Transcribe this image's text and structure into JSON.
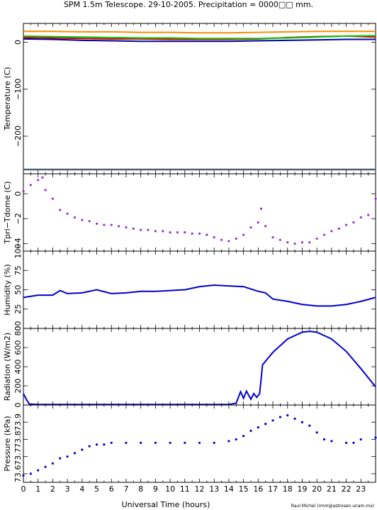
{
  "title": "SPM 1.5m Telescope. 29-10-2005. Precipitation = 0000□□ mm.",
  "xlabel": "Universal Time (hours)",
  "credit": "Raul Michel (rmm@astrosen.unam.mx)",
  "colors": {
    "temp_orange": "#ff8c00",
    "temp_red": "#dd0000",
    "temp_green": "#00cc00",
    "temp_blue": "#0000aa",
    "temp_gray": "#506070",
    "delta": "#9932cc",
    "humidity": "#0000cc",
    "radiation": "#0000cc",
    "pressure": "#0000cc"
  },
  "chart_data": [
    {
      "type": "line",
      "ylabel": "Temperature (C)",
      "xlim": [
        0,
        24
      ],
      "ylim": [
        -280,
        40
      ],
      "xticks": [
        "0",
        "1",
        "2",
        "3",
        "4",
        "5",
        "6",
        "7",
        "8",
        "9",
        "10",
        "11",
        "12",
        "13",
        "14",
        "15",
        "16",
        "17",
        "18",
        "19",
        "20",
        "21",
        "22",
        "23"
      ],
      "yticks": [
        "0",
        "−100",
        "−200"
      ],
      "series": [
        {
          "color": "orange",
          "x": [
            0,
            2,
            4,
            6,
            8,
            10,
            12,
            14,
            16,
            18,
            20,
            22,
            24
          ],
          "y": [
            23,
            23,
            22,
            22,
            21,
            21,
            20,
            20,
            21,
            22,
            23,
            23,
            23
          ]
        },
        {
          "color": "red",
          "x": [
            0,
            2,
            4,
            6,
            8,
            10,
            12,
            14,
            16,
            18,
            20,
            22,
            24
          ],
          "y": [
            10,
            9,
            8,
            7,
            7,
            6,
            6,
            6,
            7,
            10,
            12,
            13,
            11
          ]
        },
        {
          "color": "green",
          "x": [
            0,
            2,
            4,
            6,
            8,
            10,
            12,
            14,
            16,
            18,
            20,
            22,
            24
          ],
          "y": [
            13,
            12,
            11,
            10,
            9,
            9,
            8,
            8,
            8,
            9,
            11,
            13,
            14
          ]
        },
        {
          "color": "blue",
          "x": [
            0,
            2,
            4,
            6,
            8,
            10,
            12,
            14,
            16,
            18,
            20,
            22,
            24
          ],
          "y": [
            7,
            6,
            4,
            3,
            2,
            2,
            2,
            2,
            3,
            4,
            5,
            6,
            6
          ]
        },
        {
          "color": "gray",
          "x": [
            0,
            24
          ],
          "y": [
            -271,
            -271
          ]
        }
      ]
    },
    {
      "type": "scatter",
      "ylabel": "Tpri−Tdome (C)",
      "xlim": [
        0,
        24
      ],
      "ylim": [
        -4.6,
        1.6
      ],
      "yticks": [
        "0",
        "−2",
        "−4"
      ],
      "x": [
        0,
        0.5,
        1.0,
        1.3,
        1.5,
        2.0,
        2.5,
        3.0,
        3.5,
        4.0,
        4.5,
        5.0,
        5.5,
        6.0,
        6.5,
        7.0,
        7.5,
        8.0,
        8.5,
        9.0,
        9.5,
        10.0,
        10.5,
        11.0,
        11.5,
        12.0,
        12.5,
        13.0,
        13.5,
        14.0,
        14.5,
        15.0,
        15.5,
        16.0,
        16.2,
        16.5,
        17.0,
        17.5,
        18.0,
        18.5,
        19.0,
        19.5,
        20.0,
        20.5,
        21.0,
        21.5,
        22.0,
        22.5,
        23.0,
        23.5,
        24.0
      ],
      "y": [
        0.2,
        0.7,
        1.1,
        1.3,
        0.3,
        -0.4,
        -1.3,
        -1.6,
        -1.9,
        -2.1,
        -2.2,
        -2.4,
        -2.5,
        -2.5,
        -2.6,
        -2.7,
        -2.8,
        -2.9,
        -2.9,
        -3.0,
        -3.0,
        -3.1,
        -3.1,
        -3.1,
        -3.2,
        -3.2,
        -3.3,
        -3.5,
        -3.7,
        -3.8,
        -3.6,
        -3.3,
        -2.7,
        -2.3,
        -1.2,
        -2.6,
        -3.5,
        -3.7,
        -3.9,
        -4.0,
        -3.9,
        -3.9,
        -3.6,
        -3.3,
        -3.0,
        -2.8,
        -2.5,
        -2.3,
        -1.9,
        -1.7,
        -0.4
      ]
    },
    {
      "type": "line",
      "ylabel": "Humidity (%)",
      "xlim": [
        0,
        24
      ],
      "ylim": [
        0,
        100
      ],
      "yticks": [
        "0",
        "25",
        "50",
        "75",
        "100"
      ],
      "x": [
        0,
        1,
        2,
        2.5,
        3,
        4,
        5,
        6,
        7,
        8,
        9,
        10,
        11,
        12,
        13,
        14,
        15,
        16,
        16.5,
        17,
        18,
        19,
        20,
        21,
        22,
        23,
        24
      ],
      "y": [
        40,
        43,
        43,
        49,
        45,
        46,
        50,
        45,
        46,
        48,
        48,
        49,
        50,
        54,
        56,
        55,
        54,
        48,
        46,
        38,
        35,
        31,
        29,
        29,
        31,
        35,
        40
      ]
    },
    {
      "type": "line",
      "ylabel": "Radiation (W/m2)",
      "xlim": [
        0,
        24
      ],
      "ylim": [
        0,
        800
      ],
      "yticks": [
        "0",
        "200",
        "400",
        "600",
        "800"
      ],
      "x": [
        0,
        0.2,
        0.4,
        1,
        2,
        4,
        6,
        8,
        10,
        12,
        14,
        14.5,
        14.8,
        15.0,
        15.2,
        15.5,
        15.7,
        15.9,
        16.1,
        16.3,
        17,
        18,
        19,
        19.5,
        20,
        21,
        22,
        23,
        24
      ],
      "y": [
        120,
        60,
        10,
        5,
        5,
        5,
        5,
        5,
        5,
        5,
        5,
        20,
        140,
        70,
        145,
        60,
        120,
        80,
        120,
        420,
        550,
        690,
        760,
        770,
        760,
        690,
        560,
        380,
        190
      ]
    },
    {
      "type": "scatter",
      "ylabel": "Pressure (kPa)",
      "xlim": [
        0,
        24
      ],
      "ylim": [
        73.55,
        74.0
      ],
      "yticks": [
        "73.6",
        "73.7",
        "73.8",
        "73.9"
      ],
      "x": [
        0,
        0.5,
        1,
        1.5,
        2,
        2.5,
        3,
        3.5,
        4,
        4.5,
        5,
        5.5,
        6,
        7,
        8,
        9,
        10,
        11,
        12,
        13,
        14,
        14.5,
        15,
        15.5,
        16,
        16.5,
        17,
        17.5,
        18,
        18.5,
        19,
        19.5,
        20,
        20.5,
        21,
        22,
        22.5,
        23,
        24
      ],
      "y": [
        73.59,
        73.6,
        73.62,
        73.64,
        73.66,
        73.69,
        73.7,
        73.72,
        73.74,
        73.76,
        73.77,
        73.77,
        73.78,
        73.78,
        73.78,
        73.78,
        73.78,
        73.78,
        73.78,
        73.78,
        73.79,
        73.8,
        73.82,
        73.85,
        73.87,
        73.89,
        73.91,
        73.93,
        73.94,
        73.92,
        73.9,
        73.88,
        73.84,
        73.8,
        73.79,
        73.78,
        73.78,
        73.8,
        73.81
      ]
    }
  ]
}
